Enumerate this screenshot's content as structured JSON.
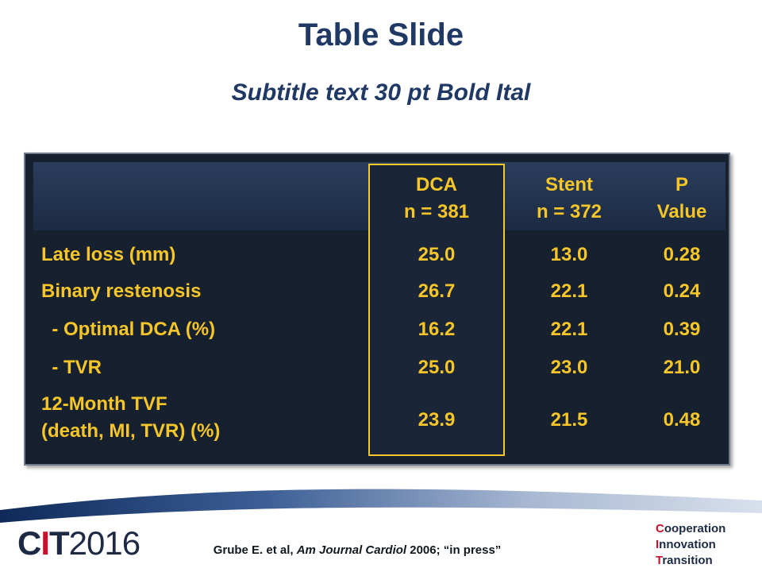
{
  "slide": {
    "title": "Table Slide",
    "subtitle": "Subtitle text 30 pt Bold Ital"
  },
  "table": {
    "headers": [
      {
        "line1": "DCA",
        "line2": "n = 381"
      },
      {
        "line1": "Stent",
        "line2": "n = 372"
      },
      {
        "line1": "P",
        "line2": "Value"
      }
    ],
    "rows": [
      {
        "label": "Late loss (mm)",
        "values": [
          "25.0",
          "13.0",
          "0.28"
        ]
      },
      {
        "label": "Binary restenosis",
        "values": [
          "26.7",
          "22.1",
          "0.24"
        ]
      },
      {
        "label": "  - Optimal DCA (%)",
        "values": [
          "16.2",
          "22.1",
          "0.39"
        ]
      },
      {
        "label": "  - TVR",
        "values": [
          "25.0",
          "23.0",
          "21.0"
        ]
      },
      {
        "label_line1": "12-Month TVF",
        "label_line2": "(death, MI, TVR) (%)",
        "values": [
          "23.9",
          "21.5",
          "0.48"
        ]
      }
    ],
    "colors": {
      "background": "#16202f",
      "text": "#f6c629",
      "highlight_border": "#f3c82a"
    }
  },
  "footer": {
    "citation_author": "Grube E. et al, ",
    "citation_journal": "Am Journal Cardiol",
    "citation_rest": " 2006; “in press”",
    "logo_letters_c": "C",
    "logo_letters_i": "I",
    "logo_letters_t": "T",
    "logo_year": "2016",
    "words": [
      {
        "first": "C",
        "rest": "ooperation"
      },
      {
        "first": "I",
        "rest": "nnovation"
      },
      {
        "first": "T",
        "rest": "ransition"
      }
    ]
  }
}
